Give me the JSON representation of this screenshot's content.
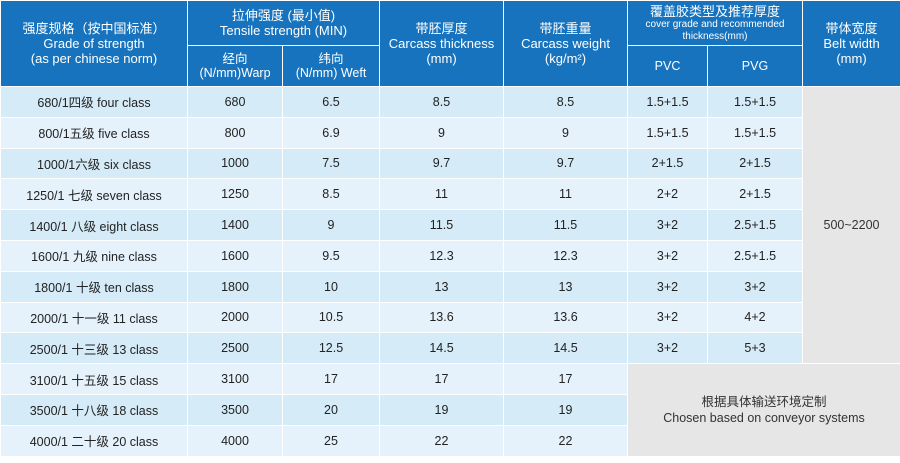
{
  "header": {
    "grade": {
      "cn": "强度规格（按中国标准）",
      "en1": "Grade of strength",
      "en2": "(as per chinese norm)"
    },
    "tensile": {
      "cn": "拉伸强度 (最小值)",
      "en": "Tensile strength (MIN)"
    },
    "warp": {
      "cn": "经向",
      "en": "(N/mm)Warp"
    },
    "weft": {
      "cn": "纬向",
      "en": "(N/mm) Weft"
    },
    "thickness": {
      "cn": "带胚厚度",
      "en": "Carcass thickness",
      "unit": "(mm)"
    },
    "weight": {
      "cn": "带胚重量",
      "en": "Carcass weight",
      "unit": "(kg/m²)"
    },
    "cover": {
      "cn": "覆盖胶类型及推荐厚度",
      "en": "cover grade and recommended thickness(mm)"
    },
    "pvc": "PVC",
    "pvg": "PVG",
    "width": {
      "cn": "带体宽度",
      "en": "Belt width",
      "unit": "(mm)"
    }
  },
  "rows": [
    {
      "grade": "680/1四级 four class",
      "warp": "680",
      "weft": "6.5",
      "thickness": "8.5",
      "weight": "8.5",
      "pvc": "1.5+1.5",
      "pvg": "1.5+1.5"
    },
    {
      "grade": "800/1五级 five class",
      "warp": "800",
      "weft": "6.9",
      "thickness": "9",
      "weight": "9",
      "pvc": "1.5+1.5",
      "pvg": "1.5+1.5"
    },
    {
      "grade": "1000/1六级 six class",
      "warp": "1000",
      "weft": "7.5",
      "thickness": "9.7",
      "weight": "9.7",
      "pvc": "2+1.5",
      "pvg": "2+1.5"
    },
    {
      "grade": "1250/1 七级 seven class",
      "warp": "1250",
      "weft": "8.5",
      "thickness": "11",
      "weight": "11",
      "pvc": "2+2",
      "pvg": "2+1.5"
    },
    {
      "grade": "1400/1 八级 eight class",
      "warp": "1400",
      "weft": "9",
      "thickness": "11.5",
      "weight": "11.5",
      "pvc": "3+2",
      "pvg": "2.5+1.5"
    },
    {
      "grade": "1600/1 九级 nine class",
      "warp": "1600",
      "weft": "9.5",
      "thickness": "12.3",
      "weight": "12.3",
      "pvc": "3+2",
      "pvg": "2.5+1.5"
    },
    {
      "grade": "1800/1 十级 ten class",
      "warp": "1800",
      "weft": "10",
      "thickness": "13",
      "weight": "13",
      "pvc": "3+2",
      "pvg": "3+2"
    },
    {
      "grade": "2000/1 十一级 11 class",
      "warp": "2000",
      "weft": "10.5",
      "thickness": "13.6",
      "weight": "13.6",
      "pvc": "3+2",
      "pvg": "4+2"
    },
    {
      "grade": "2500/1 十三级 13 class",
      "warp": "2500",
      "weft": "12.5",
      "thickness": "14.5",
      "weight": "14.5",
      "pvc": "3+2",
      "pvg": "5+3"
    },
    {
      "grade": "3100/1 十五级 15 class",
      "warp": "3100",
      "weft": "17",
      "thickness": "17",
      "weight": "17"
    },
    {
      "grade": "3500/1 十八级 18 class",
      "warp": "3500",
      "weft": "20",
      "thickness": "19",
      "weight": "19"
    },
    {
      "grade": "4000/1 二十级 20 class",
      "warp": "4000",
      "weft": "25",
      "thickness": "22",
      "weight": "22"
    }
  ],
  "belt_width": "500~2200",
  "custom_note": {
    "cn": "根据具体输送环境定制",
    "en": "Chosen based on conveyor systems"
  },
  "colors": {
    "header_bg": "#1773bd",
    "row_odd": "#d6ebf8",
    "row_even": "#e5f2fb",
    "merged_bg": "#e6e6e6"
  }
}
